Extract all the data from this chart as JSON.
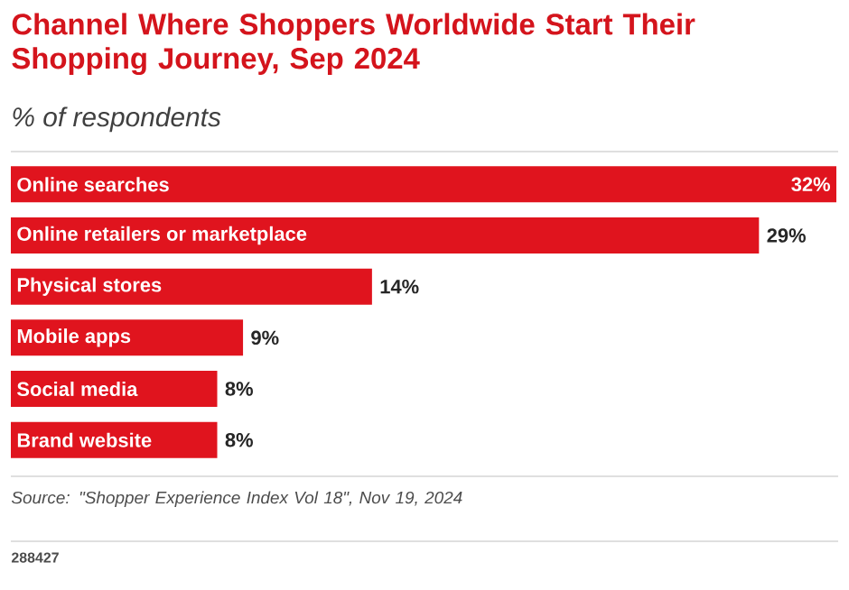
{
  "chart_data": {
    "type": "bar",
    "orientation": "horizontal",
    "title": "Channel Where Shoppers Worldwide Start Their Shopping Journey, Sep 2024",
    "subtitle": "% of respondents",
    "categories": [
      "Online searches",
      "Online retailers or marketplace",
      "Physical stores",
      "Mobile apps",
      "Social media",
      "Brand website"
    ],
    "values": [
      32,
      29,
      14,
      9,
      8,
      8
    ],
    "value_labels": [
      "32%",
      "29%",
      "14%",
      "9%",
      "8%",
      "8%"
    ],
    "color": "#e0141e",
    "annotations": [
      "Source: \"Shopper Experience Index Vol 18\", Nov 19, 2024",
      "288427"
    ]
  }
}
